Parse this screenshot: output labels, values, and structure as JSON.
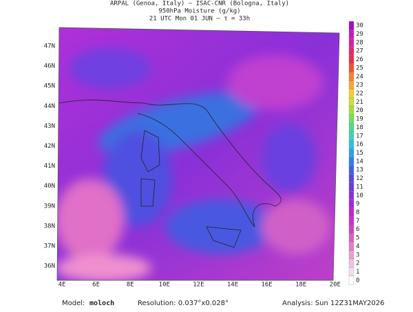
{
  "header": {
    "line1": "ARPAL (Genoa, Italy)  –  ISAC-CNR (Bologna, Italy)",
    "line2": "950hPa Moisture (g/kg)",
    "line3": "21 UTC Mon 01 JUN  –  τ = 33h"
  },
  "latitudes": [
    "47N",
    "46N",
    "45N",
    "44N",
    "43N",
    "42N",
    "41N",
    "40N",
    "39N",
    "38N",
    "37N",
    "36N"
  ],
  "longitudes": [
    "4E",
    "6E",
    "8E",
    "10E",
    "12E",
    "14E",
    "16E",
    "18E",
    "20E"
  ],
  "colorbar": {
    "levels": [
      0,
      1,
      2,
      3,
      4,
      5,
      6,
      7,
      8,
      9,
      10,
      11,
      12,
      13,
      14,
      15,
      16,
      17,
      18,
      19,
      20,
      21,
      22,
      23,
      24,
      25,
      26,
      27,
      28,
      29,
      30
    ],
    "colors": [
      "#ffffff",
      "#f6dcec",
      "#f0c0e0",
      "#e8a0d4",
      "#e080cc",
      "#d860c4",
      "#d040c0",
      "#c830c8",
      "#b828d0",
      "#a028d8",
      "#8830e0",
      "#7038e0",
      "#5848e0",
      "#4060e8",
      "#3080e8",
      "#30a0e8",
      "#30c0e0",
      "#40d0c0",
      "#50d890",
      "#70e060",
      "#a0e040",
      "#d0e030",
      "#f0d030",
      "#f8a830",
      "#f88030",
      "#f05030",
      "#e83040",
      "#e02870",
      "#d820a0",
      "#c818c0",
      "#a010c0"
    ]
  },
  "footer": {
    "model_label": "Model:",
    "model": "moloch",
    "resolution": "Resolution: 0.037°x0.028°",
    "analysis": "Analysis: Sun 12Z31MAY2026"
  }
}
